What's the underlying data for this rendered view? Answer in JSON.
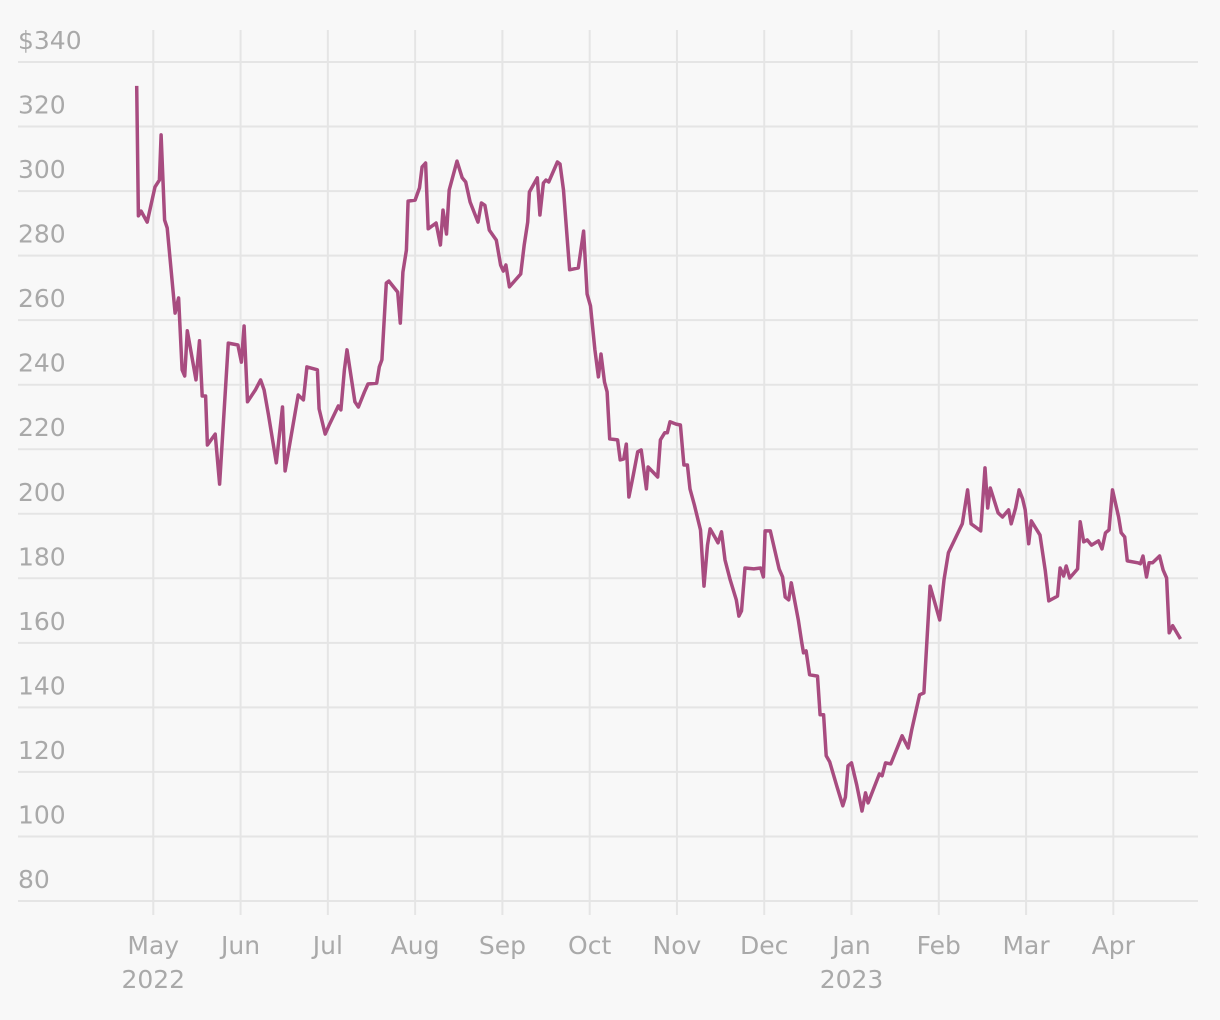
{
  "chart_data": {
    "type": "line",
    "x": [
      4.81,
      4.83,
      4.86,
      4.93,
      5.02,
      5.07,
      5.09,
      5.13,
      5.16,
      5.25,
      5.29,
      5.33,
      5.36,
      5.39,
      5.49,
      5.53,
      5.56,
      5.6,
      5.62,
      5.71,
      5.76,
      5.86,
      5.97,
      6.01,
      6.04,
      6.08,
      6.17,
      6.23,
      6.27,
      6.32,
      6.41,
      6.48,
      6.51,
      6.66,
      6.72,
      6.76,
      6.88,
      6.9,
      6.97,
      7.02,
      7.12,
      7.15,
      7.19,
      7.22,
      7.31,
      7.35,
      7.42,
      7.46,
      7.56,
      7.59,
      7.62,
      7.67,
      7.7,
      7.8,
      7.83,
      7.86,
      7.9,
      7.92,
      8.0,
      8.05,
      8.08,
      8.12,
      8.15,
      8.24,
      8.29,
      8.32,
      8.36,
      8.39,
      8.48,
      8.54,
      8.58,
      8.63,
      8.72,
      8.76,
      8.8,
      8.85,
      8.93,
      8.98,
      9.01,
      9.04,
      9.08,
      9.21,
      9.25,
      9.29,
      9.31,
      9.4,
      9.43,
      9.47,
      9.5,
      9.53,
      9.63,
      9.66,
      9.7,
      9.77,
      9.87,
      9.93,
      9.97,
      10.01,
      10.06,
      10.1,
      10.13,
      10.17,
      10.2,
      10.23,
      10.32,
      10.35,
      10.39,
      10.42,
      10.45,
      10.5,
      10.55,
      10.59,
      10.65,
      10.67,
      10.78,
      10.81,
      10.86,
      10.89,
      10.92,
      10.99,
      11.04,
      11.08,
      11.12,
      11.15,
      11.2,
      11.27,
      11.31,
      11.35,
      11.38,
      11.44,
      11.47,
      11.51,
      11.55,
      11.61,
      11.68,
      11.71,
      11.74,
      11.78,
      11.88,
      11.96,
      11.99,
      12.01,
      12.07,
      12.17,
      12.21,
      12.24,
      12.28,
      12.31,
      12.39,
      12.43,
      12.45,
      12.48,
      12.52,
      12.61,
      12.64,
      12.68,
      12.71,
      12.75,
      12.83,
      12.9,
      12.93,
      12.96,
      13.0,
      13.06,
      13.12,
      13.16,
      13.19,
      13.32,
      13.35,
      13.39,
      13.45,
      13.58,
      13.65,
      13.69,
      13.78,
      13.83,
      13.9,
      14.01,
      14.06,
      14.11,
      14.27,
      14.33,
      14.37,
      14.48,
      14.53,
      14.56,
      14.59,
      14.68,
      14.73,
      14.8,
      14.83,
      14.88,
      14.92,
      14.96,
      14.99,
      15.03,
      15.06,
      15.16,
      15.22,
      15.26,
      15.36,
      15.39,
      15.43,
      15.46,
      15.5,
      15.59,
      15.62,
      15.66,
      15.7,
      15.75,
      15.83,
      15.87,
      15.91,
      15.95,
      15.99,
      16.06,
      16.09,
      16.13,
      16.16,
      16.28,
      16.31,
      16.34,
      16.38,
      16.41,
      16.45,
      16.53,
      16.57,
      16.61,
      16.64,
      16.68,
      16.77
    ],
    "values": [
      332.6,
      292.3,
      293.8,
      290.4,
      301.3,
      303.4,
      317.4,
      291.0,
      288.6,
      262.2,
      266.9,
      244.6,
      242.7,
      256.7,
      241.5,
      253.6,
      236.5,
      236.5,
      221.3,
      224.7,
      209.2,
      252.9,
      252.3,
      247.0,
      258.2,
      234.7,
      238.4,
      241.5,
      238.4,
      230.6,
      215.8,
      233.1,
      213.3,
      236.8,
      235.3,
      245.5,
      244.6,
      232.5,
      224.7,
      227.8,
      233.4,
      232.2,
      244.6,
      250.8,
      234.7,
      233.1,
      237.8,
      240.2,
      240.5,
      245.5,
      247.7,
      271.5,
      272.1,
      268.7,
      259.1,
      274.9,
      281.7,
      296.9,
      297.2,
      301.0,
      307.5,
      308.7,
      288.3,
      290.1,
      283.3,
      294.1,
      286.7,
      300.3,
      309.3,
      304.1,
      302.8,
      296.6,
      290.4,
      296.3,
      295.6,
      287.9,
      284.8,
      277.1,
      275.2,
      277.1,
      270.3,
      274.3,
      283.3,
      290.4,
      299.7,
      304.1,
      292.6,
      302.5,
      303.4,
      302.8,
      309.0,
      308.4,
      300.3,
      275.6,
      276.2,
      287.6,
      268.1,
      264.4,
      250.8,
      242.4,
      249.5,
      240.8,
      237.8,
      223.2,
      222.9,
      216.7,
      217.0,
      221.6,
      205.2,
      212.0,
      219.2,
      219.8,
      207.7,
      214.5,
      211.4,
      222.9,
      225.1,
      225.1,
      228.5,
      227.8,
      227.5,
      215.1,
      215.1,
      207.7,
      202.7,
      195.0,
      177.6,
      190.3,
      195.3,
      192.5,
      191.0,
      194.4,
      185.7,
      179.5,
      173.3,
      168.3,
      169.9,
      183.2,
      182.9,
      183.2,
      180.4,
      194.7,
      194.7,
      182.9,
      180.4,
      174.2,
      173.3,
      178.6,
      167.1,
      160.0,
      156.9,
      157.5,
      150.1,
      149.7,
      137.7,
      137.7,
      125.0,
      123.1,
      115.7,
      109.5,
      112.2,
      121.9,
      122.8,
      116.0,
      107.9,
      113.5,
      110.4,
      119.4,
      118.8,
      122.8,
      122.5,
      131.2,
      127.4,
      133.0,
      143.9,
      144.5,
      177.6,
      167.1,
      179.5,
      187.9,
      196.9,
      207.4,
      196.9,
      194.7,
      214.2,
      201.8,
      208.0,
      200.3,
      199.0,
      201.2,
      196.9,
      201.8,
      207.4,
      204.6,
      201.2,
      190.7,
      197.8,
      193.4,
      182.3,
      173.0,
      174.5,
      183.2,
      180.7,
      183.8,
      180.1,
      182.9,
      197.5,
      191.3,
      191.9,
      190.3,
      191.6,
      189.1,
      194.1,
      195.0,
      207.4,
      199.0,
      194.1,
      192.8,
      185.4,
      184.8,
      184.5,
      186.9,
      180.4,
      184.8,
      184.8,
      186.9,
      182.6,
      180.1,
      163.1,
      165.3,
      161.2
    ],
    "color": "#a84c80",
    "xlim": [
      3.45,
      16.97
    ],
    "xticks": [
      {
        "value": 5,
        "label": "May"
      },
      {
        "value": 6,
        "label": "Jun"
      },
      {
        "value": 7,
        "label": "Jul"
      },
      {
        "value": 8,
        "label": "Aug"
      },
      {
        "value": 9,
        "label": "Sep"
      },
      {
        "value": 10,
        "label": "Oct"
      },
      {
        "value": 11,
        "label": "Nov"
      },
      {
        "value": 12,
        "label": "Dec"
      },
      {
        "value": 13,
        "label": "Jan"
      },
      {
        "value": 14,
        "label": "Feb"
      },
      {
        "value": 15,
        "label": "Mar"
      },
      {
        "value": 16,
        "label": "Apr"
      }
    ],
    "year_labels": [
      {
        "value": 5,
        "label": "2022"
      },
      {
        "value": 13,
        "label": "2023"
      }
    ],
    "ylim": [
      80,
      340
    ],
    "yticks": [
      80,
      100,
      120,
      140,
      160,
      180,
      200,
      220,
      240,
      260,
      280,
      300,
      320,
      {
        "value": 340,
        "label": "$340"
      }
    ],
    "grid": true
  }
}
